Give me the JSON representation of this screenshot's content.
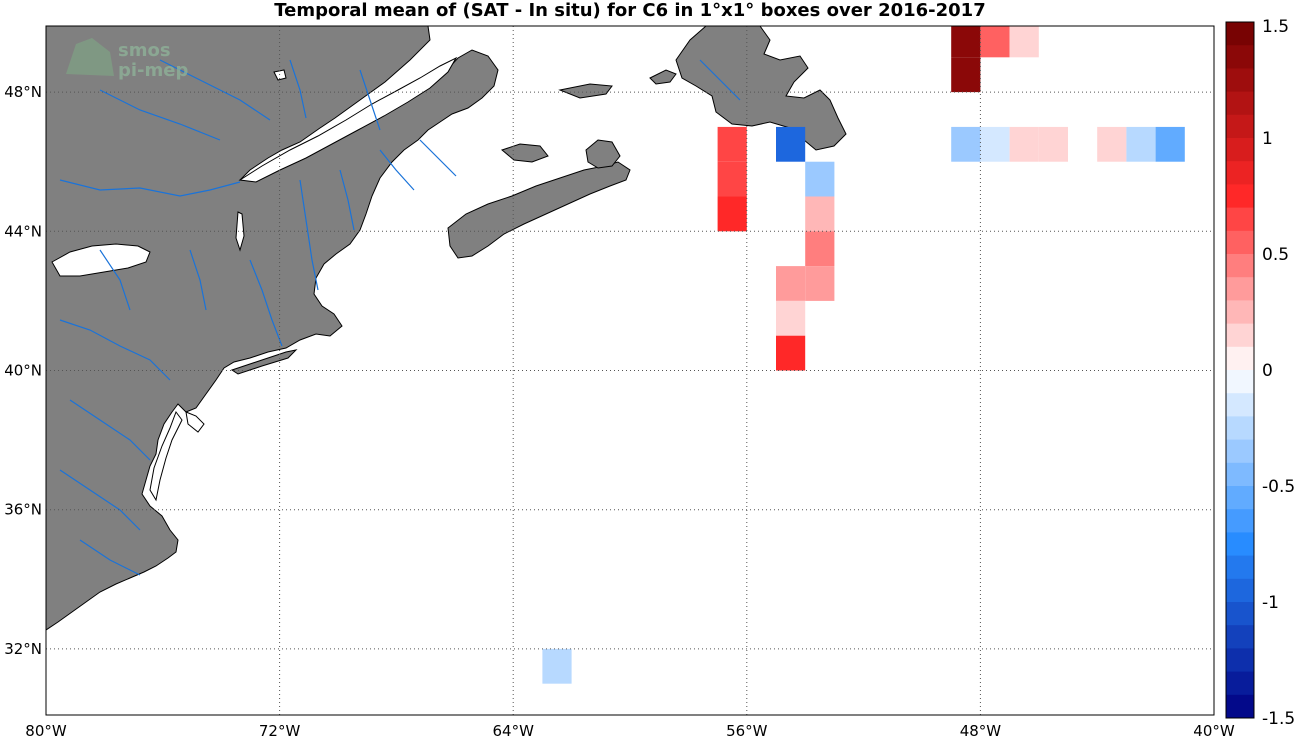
{
  "title": "Temporal mean of (SAT - In situ) for C6 in 1°x1° boxes over 2016-2017",
  "logo": {
    "line1": "smos",
    "line2": "pi-mep"
  },
  "colors": {
    "land": "#808080",
    "coast": "#000000",
    "rivers": "#1a73d9",
    "grid": "#555555"
  },
  "chart_data": {
    "type": "heatmap",
    "title": "Temporal mean of (SAT - In situ) for C6 in 1°x1° boxes over 2016-2017",
    "xlim": [
      -80,
      -40
    ],
    "ylim": [
      30,
      50
    ],
    "xticks": [
      -80,
      -72,
      -64,
      -56,
      -48,
      -40
    ],
    "xtick_labels": [
      "80°W",
      "72°W",
      "64°W",
      "56°W",
      "48°W",
      "40°W"
    ],
    "yticks": [
      32,
      36,
      40,
      44,
      48
    ],
    "ytick_labels": [
      "32°N",
      "36°N",
      "40°N",
      "44°N",
      "48°N"
    ],
    "grid": true,
    "cell_size_deg": 1,
    "colorbar": {
      "vmin": -1.5,
      "vmax": 1.5,
      "levels": 30,
      "ticks": [
        1.5,
        1,
        0.5,
        0,
        -0.5,
        -1,
        -1.5
      ],
      "tick_labels": [
        "1.5",
        "1",
        "0.5",
        "0",
        "-0.5",
        "-1",
        "-1.5"
      ],
      "placement": "right"
    },
    "cells": [
      {
        "lon": -49,
        "lat": 49,
        "value": 1.35
      },
      {
        "lon": -49,
        "lat": 48,
        "value": 1.35
      },
      {
        "lon": -48,
        "lat": 49,
        "value": 0.55
      },
      {
        "lon": -47,
        "lat": 49,
        "value": 0.15
      },
      {
        "lon": -57,
        "lat": 46,
        "value": 0.65
      },
      {
        "lon": -57,
        "lat": 45,
        "value": 0.65
      },
      {
        "lon": -57,
        "lat": 44,
        "value": 0.75
      },
      {
        "lon": -55,
        "lat": 46,
        "value": -0.95
      },
      {
        "lon": -54,
        "lat": 45,
        "value": -0.35
      },
      {
        "lon": -54,
        "lat": 44,
        "value": 0.25
      },
      {
        "lon": -54,
        "lat": 43,
        "value": 0.45
      },
      {
        "lon": -55,
        "lat": 42,
        "value": 0.35
      },
      {
        "lon": -54,
        "lat": 42,
        "value": 0.35
      },
      {
        "lon": -55,
        "lat": 41,
        "value": 0.15
      },
      {
        "lon": -55,
        "lat": 40,
        "value": 0.8
      },
      {
        "lon": -49,
        "lat": 46,
        "value": -0.35
      },
      {
        "lon": -48,
        "lat": 46,
        "value": -0.15
      },
      {
        "lon": -47,
        "lat": 46,
        "value": 0.15
      },
      {
        "lon": -46,
        "lat": 46,
        "value": 0.15
      },
      {
        "lon": -44,
        "lat": 46,
        "value": 0.15
      },
      {
        "lon": -43,
        "lat": 46,
        "value": -0.25
      },
      {
        "lon": -42,
        "lat": 46,
        "value": -0.55
      },
      {
        "lon": -63,
        "lat": 31,
        "value": -0.25
      }
    ]
  }
}
